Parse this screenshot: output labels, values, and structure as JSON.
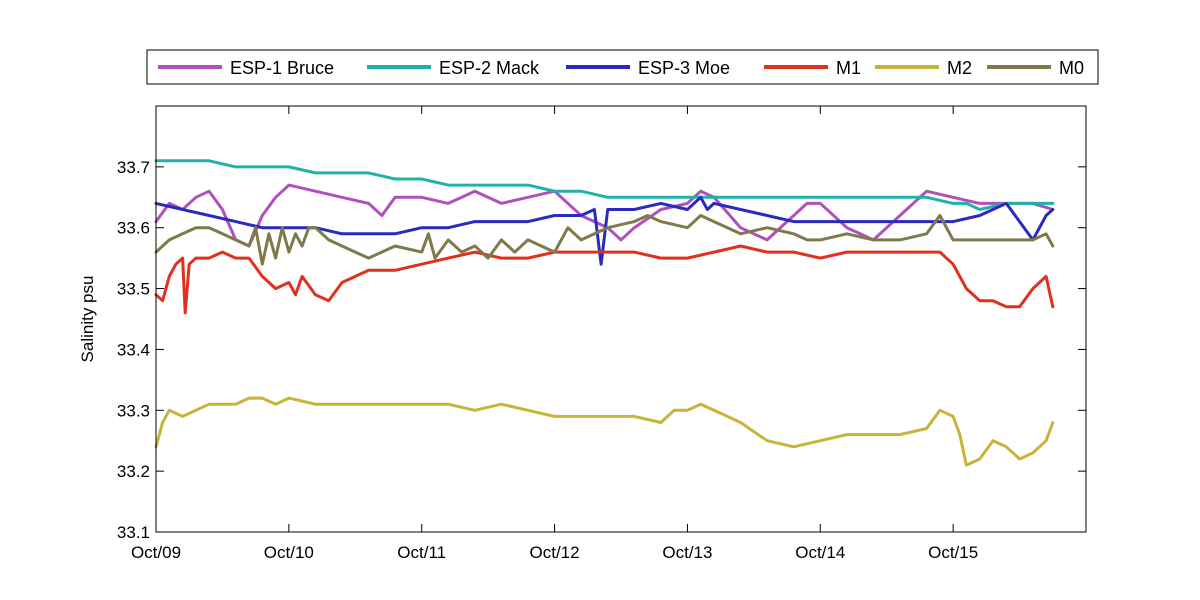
{
  "chart_data": {
    "type": "line",
    "title": "",
    "xlabel": "",
    "ylabel": "Salinity psu",
    "xlim": [
      0,
      7
    ],
    "ylim": [
      33.1,
      33.8
    ],
    "x_ticks": [
      0,
      1,
      2,
      3,
      4,
      5,
      6
    ],
    "x_tick_labels": [
      "Oct/09",
      "Oct/10",
      "Oct/11",
      "Oct/12",
      "Oct/13",
      "Oct/14",
      "Oct/15"
    ],
    "y_ticks": [
      33.1,
      33.2,
      33.3,
      33.4,
      33.5,
      33.6,
      33.7
    ],
    "y_tick_labels": [
      "33.1",
      "33.2",
      "33.3",
      "33.4",
      "33.5",
      "33.6",
      "33.7"
    ],
    "grid": false,
    "legend": {
      "placement": "top",
      "orientation": "horizontal"
    },
    "series": [
      {
        "name": "ESP-1 Bruce",
        "color": "#b150bd",
        "x": [
          0.0,
          0.1,
          0.2,
          0.3,
          0.4,
          0.5,
          0.6,
          0.7,
          0.8,
          0.9,
          1.0,
          1.2,
          1.4,
          1.6,
          1.7,
          1.8,
          2.0,
          2.2,
          2.4,
          2.6,
          2.8,
          3.0,
          3.2,
          3.4,
          3.5,
          3.6,
          3.8,
          4.0,
          4.1,
          4.2,
          4.4,
          4.6,
          4.8,
          4.9,
          5.0,
          5.2,
          5.4,
          5.6,
          5.8,
          6.0,
          6.2,
          6.4,
          6.6,
          6.75
        ],
        "y": [
          33.61,
          33.64,
          33.63,
          33.65,
          33.66,
          33.63,
          33.58,
          33.57,
          33.62,
          33.65,
          33.67,
          33.66,
          33.65,
          33.64,
          33.62,
          33.65,
          33.65,
          33.64,
          33.66,
          33.64,
          33.65,
          33.66,
          33.62,
          33.6,
          33.58,
          33.6,
          33.63,
          33.64,
          33.66,
          33.65,
          33.6,
          33.58,
          33.62,
          33.64,
          33.64,
          33.6,
          33.58,
          33.62,
          33.66,
          33.65,
          33.64,
          33.64,
          33.64,
          33.63
        ]
      },
      {
        "name": "ESP-2 Mack",
        "color": "#20b2aa",
        "x": [
          0.0,
          0.2,
          0.4,
          0.6,
          0.8,
          1.0,
          1.2,
          1.4,
          1.6,
          1.8,
          2.0,
          2.2,
          2.4,
          2.6,
          2.8,
          3.0,
          3.2,
          3.4,
          3.6,
          3.8,
          4.0,
          4.2,
          4.4,
          4.6,
          4.8,
          5.0,
          5.2,
          5.4,
          5.6,
          5.8,
          6.0,
          6.1,
          6.2,
          6.4,
          6.5,
          6.6,
          6.7,
          6.75
        ],
        "y": [
          33.71,
          33.71,
          33.71,
          33.7,
          33.7,
          33.7,
          33.69,
          33.69,
          33.69,
          33.68,
          33.68,
          33.67,
          33.67,
          33.67,
          33.67,
          33.66,
          33.66,
          33.65,
          33.65,
          33.65,
          33.65,
          33.65,
          33.65,
          33.65,
          33.65,
          33.65,
          33.65,
          33.65,
          33.65,
          33.65,
          33.64,
          33.64,
          33.63,
          33.64,
          33.64,
          33.64,
          33.64,
          33.64
        ]
      },
      {
        "name": "ESP-3 Moe",
        "color": "#2a2ac0",
        "x": [
          0.0,
          0.2,
          0.4,
          0.6,
          0.8,
          1.0,
          1.2,
          1.4,
          1.6,
          1.8,
          2.0,
          2.2,
          2.4,
          2.6,
          2.8,
          3.0,
          3.2,
          3.3,
          3.35,
          3.4,
          3.6,
          3.8,
          4.0,
          4.1,
          4.15,
          4.2,
          4.4,
          4.6,
          4.8,
          5.0,
          5.2,
          5.4,
          5.6,
          5.8,
          6.0,
          6.2,
          6.4,
          6.5,
          6.6,
          6.7,
          6.75
        ],
        "y": [
          33.64,
          33.63,
          33.62,
          33.61,
          33.6,
          33.6,
          33.6,
          33.59,
          33.59,
          33.59,
          33.6,
          33.6,
          33.61,
          33.61,
          33.61,
          33.62,
          33.62,
          33.63,
          33.54,
          33.63,
          33.63,
          33.64,
          33.63,
          33.65,
          33.63,
          33.64,
          33.63,
          33.62,
          33.61,
          33.61,
          33.61,
          33.61,
          33.61,
          33.61,
          33.61,
          33.62,
          33.64,
          33.61,
          33.58,
          33.62,
          33.63
        ]
      },
      {
        "name": "M1",
        "color": "#e0301e",
        "x": [
          0.0,
          0.05,
          0.1,
          0.15,
          0.2,
          0.22,
          0.25,
          0.3,
          0.4,
          0.5,
          0.6,
          0.7,
          0.8,
          0.9,
          1.0,
          1.05,
          1.1,
          1.2,
          1.3,
          1.4,
          1.6,
          1.8,
          2.0,
          2.2,
          2.4,
          2.6,
          2.8,
          3.0,
          3.2,
          3.4,
          3.6,
          3.8,
          4.0,
          4.2,
          4.4,
          4.6,
          4.8,
          5.0,
          5.2,
          5.4,
          5.6,
          5.8,
          5.9,
          6.0,
          6.1,
          6.2,
          6.3,
          6.4,
          6.5,
          6.6,
          6.7,
          6.75
        ],
        "y": [
          33.49,
          33.48,
          33.52,
          33.54,
          33.55,
          33.46,
          33.54,
          33.55,
          33.55,
          33.56,
          33.55,
          33.55,
          33.52,
          33.5,
          33.51,
          33.49,
          33.52,
          33.49,
          33.48,
          33.51,
          33.53,
          33.53,
          33.54,
          33.55,
          33.56,
          33.55,
          33.55,
          33.56,
          33.56,
          33.56,
          33.56,
          33.55,
          33.55,
          33.56,
          33.57,
          33.56,
          33.56,
          33.55,
          33.56,
          33.56,
          33.56,
          33.56,
          33.56,
          33.54,
          33.5,
          33.48,
          33.48,
          33.47,
          33.47,
          33.5,
          33.52,
          33.47
        ]
      },
      {
        "name": "M2",
        "color": "#c8b43a",
        "x": [
          0.0,
          0.05,
          0.1,
          0.2,
          0.3,
          0.4,
          0.5,
          0.6,
          0.7,
          0.8,
          0.9,
          1.0,
          1.2,
          1.4,
          1.6,
          1.8,
          2.0,
          2.2,
          2.4,
          2.6,
          2.8,
          3.0,
          3.2,
          3.4,
          3.6,
          3.8,
          3.9,
          4.0,
          4.1,
          4.2,
          4.4,
          4.6,
          4.8,
          5.0,
          5.2,
          5.4,
          5.6,
          5.8,
          5.9,
          6.0,
          6.05,
          6.1,
          6.2,
          6.3,
          6.4,
          6.5,
          6.6,
          6.7,
          6.75
        ],
        "y": [
          33.24,
          33.28,
          33.3,
          33.29,
          33.3,
          33.31,
          33.31,
          33.31,
          33.32,
          33.32,
          33.31,
          33.32,
          33.31,
          33.31,
          33.31,
          33.31,
          33.31,
          33.31,
          33.3,
          33.31,
          33.3,
          33.29,
          33.29,
          33.29,
          33.29,
          33.28,
          33.3,
          33.3,
          33.31,
          33.3,
          33.28,
          33.25,
          33.24,
          33.25,
          33.26,
          33.26,
          33.26,
          33.27,
          33.3,
          33.29,
          33.26,
          33.21,
          33.22,
          33.25,
          33.24,
          33.22,
          33.23,
          33.25,
          33.28
        ]
      },
      {
        "name": "M0",
        "color": "#7f7a4c",
        "x": [
          0.0,
          0.1,
          0.2,
          0.3,
          0.4,
          0.5,
          0.6,
          0.7,
          0.75,
          0.8,
          0.85,
          0.9,
          0.95,
          1.0,
          1.05,
          1.1,
          1.15,
          1.2,
          1.3,
          1.4,
          1.5,
          1.6,
          1.8,
          2.0,
          2.05,
          2.1,
          2.2,
          2.3,
          2.4,
          2.5,
          2.6,
          2.7,
          2.8,
          2.9,
          3.0,
          3.1,
          3.2,
          3.4,
          3.6,
          3.7,
          3.8,
          4.0,
          4.1,
          4.2,
          4.4,
          4.6,
          4.8,
          4.9,
          5.0,
          5.2,
          5.4,
          5.6,
          5.8,
          5.9,
          6.0,
          6.2,
          6.4,
          6.6,
          6.7,
          6.75
        ],
        "y": [
          33.56,
          33.58,
          33.59,
          33.6,
          33.6,
          33.59,
          33.58,
          33.57,
          33.6,
          33.54,
          33.59,
          33.55,
          33.6,
          33.56,
          33.59,
          33.57,
          33.6,
          33.6,
          33.58,
          33.57,
          33.56,
          33.55,
          33.57,
          33.56,
          33.59,
          33.55,
          33.58,
          33.56,
          33.57,
          33.55,
          33.58,
          33.56,
          33.58,
          33.57,
          33.56,
          33.6,
          33.58,
          33.6,
          33.61,
          33.62,
          33.61,
          33.6,
          33.62,
          33.61,
          33.59,
          33.6,
          33.59,
          33.58,
          33.58,
          33.59,
          33.58,
          33.58,
          33.59,
          33.62,
          33.58,
          33.58,
          33.58,
          33.58,
          33.59,
          33.57
        ]
      }
    ]
  }
}
